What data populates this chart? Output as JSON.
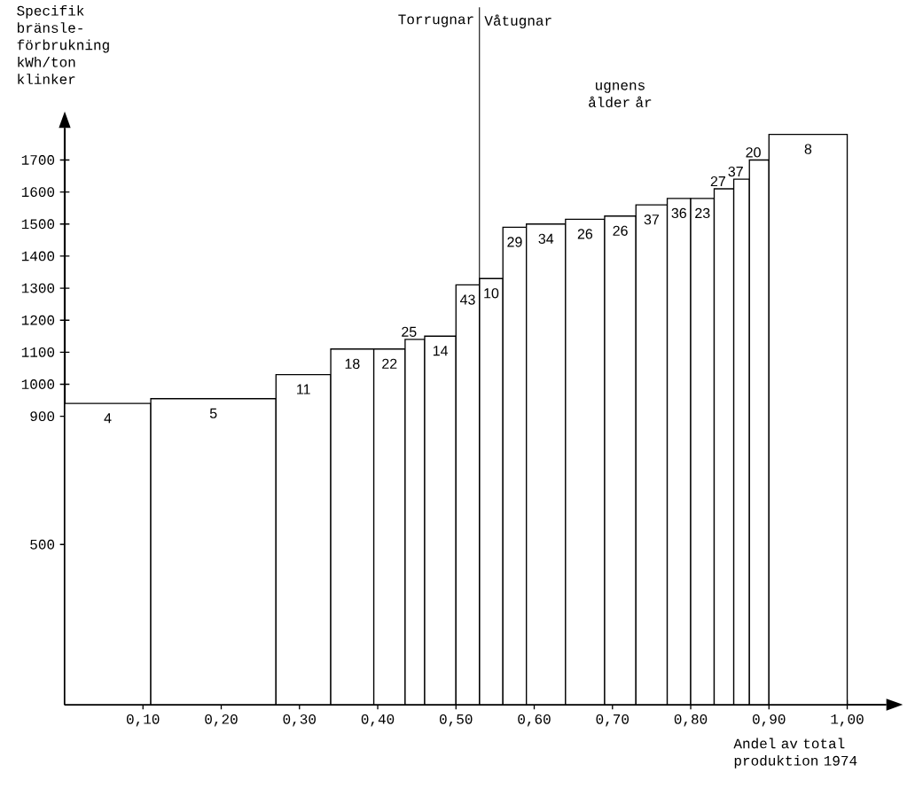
{
  "chart_data": {
    "type": "histogram",
    "ylabel": "Specifik bränsle- förbrukning kWh/ton klinker",
    "xlabel": "Andel av total produktion 1974",
    "bins": [
      0,
      0.11,
      0.27,
      0.34,
      0.395,
      0.435,
      0.46,
      0.5,
      0.53,
      0.56,
      0.59,
      0.64,
      0.69,
      0.73,
      0.77,
      0.8,
      0.83,
      0.855,
      0.875,
      0.9,
      1.0
    ],
    "values": [
      940,
      955,
      1030,
      1110,
      1110,
      1140,
      1150,
      1310,
      1330,
      1490,
      1500,
      1515,
      1525,
      1560,
      1580,
      1580,
      1610,
      1640,
      1700,
      1780
    ],
    "color": "#ffffff",
    "xlim": [
      0,
      1.05
    ],
    "ylim": [
      0,
      1800
    ],
    "xticks": [
      {
        "value": 0.1,
        "label": "0,10"
      },
      {
        "value": 0.2,
        "label": "0,20"
      },
      {
        "value": 0.3,
        "label": "0,30"
      },
      {
        "value": 0.4,
        "label": "0,40"
      },
      {
        "value": 0.5,
        "label": "0,50"
      },
      {
        "value": 0.6,
        "label": "0,60"
      },
      {
        "value": 0.7,
        "label": "0,70"
      },
      {
        "value": 0.8,
        "label": "0,80"
      },
      {
        "value": 0.9,
        "label": "0,90"
      },
      {
        "value": 1.0,
        "label": "1,00"
      }
    ],
    "yticks": [
      500,
      900,
      1000,
      1100,
      1200,
      1300,
      1400,
      1500,
      1600,
      1700
    ],
    "ref_lines": [
      {
        "axis": "x",
        "value": 0.53,
        "label": "Torrugnar"
      }
    ],
    "annotations": [
      "ugnens ålder år",
      "Våtugnar",
      {
        "text": "4",
        "x": 0.055,
        "y": 940
      },
      {
        "text": "5",
        "x": 0.19,
        "y": 955
      },
      {
        "text": "11",
        "x": 0.305,
        "y": 1030
      },
      {
        "text": "18",
        "x": 0.3675,
        "y": 1110
      },
      {
        "text": "22",
        "x": 0.415,
        "y": 1110
      },
      {
        "text": "25",
        "x": 0.4475,
        "y": 1140
      },
      {
        "text": "14",
        "x": 0.48,
        "y": 1150
      },
      {
        "text": "43",
        "x": 0.515,
        "y": 1310
      },
      {
        "text": "10",
        "x": 0.545,
        "y": 1330
      },
      {
        "text": "29",
        "x": 0.575,
        "y": 1490
      },
      {
        "text": "34",
        "x": 0.615,
        "y": 1500
      },
      {
        "text": "26",
        "x": 0.665,
        "y": 1515
      },
      {
        "text": "26",
        "x": 0.71,
        "y": 1525
      },
      {
        "text": "37",
        "x": 0.75,
        "y": 1560
      },
      {
        "text": "36",
        "x": 0.785,
        "y": 1580
      },
      {
        "text": "23",
        "x": 0.815,
        "y": 1580
      },
      {
        "text": "27",
        "x": 0.8425,
        "y": 1610
      },
      {
        "text": "37",
        "x": 0.865,
        "y": 1640
      },
      {
        "text": "20",
        "x": 0.8875,
        "y": 1700
      },
      {
        "text": "8",
        "x": 0.95,
        "y": 1780
      }
    ]
  }
}
